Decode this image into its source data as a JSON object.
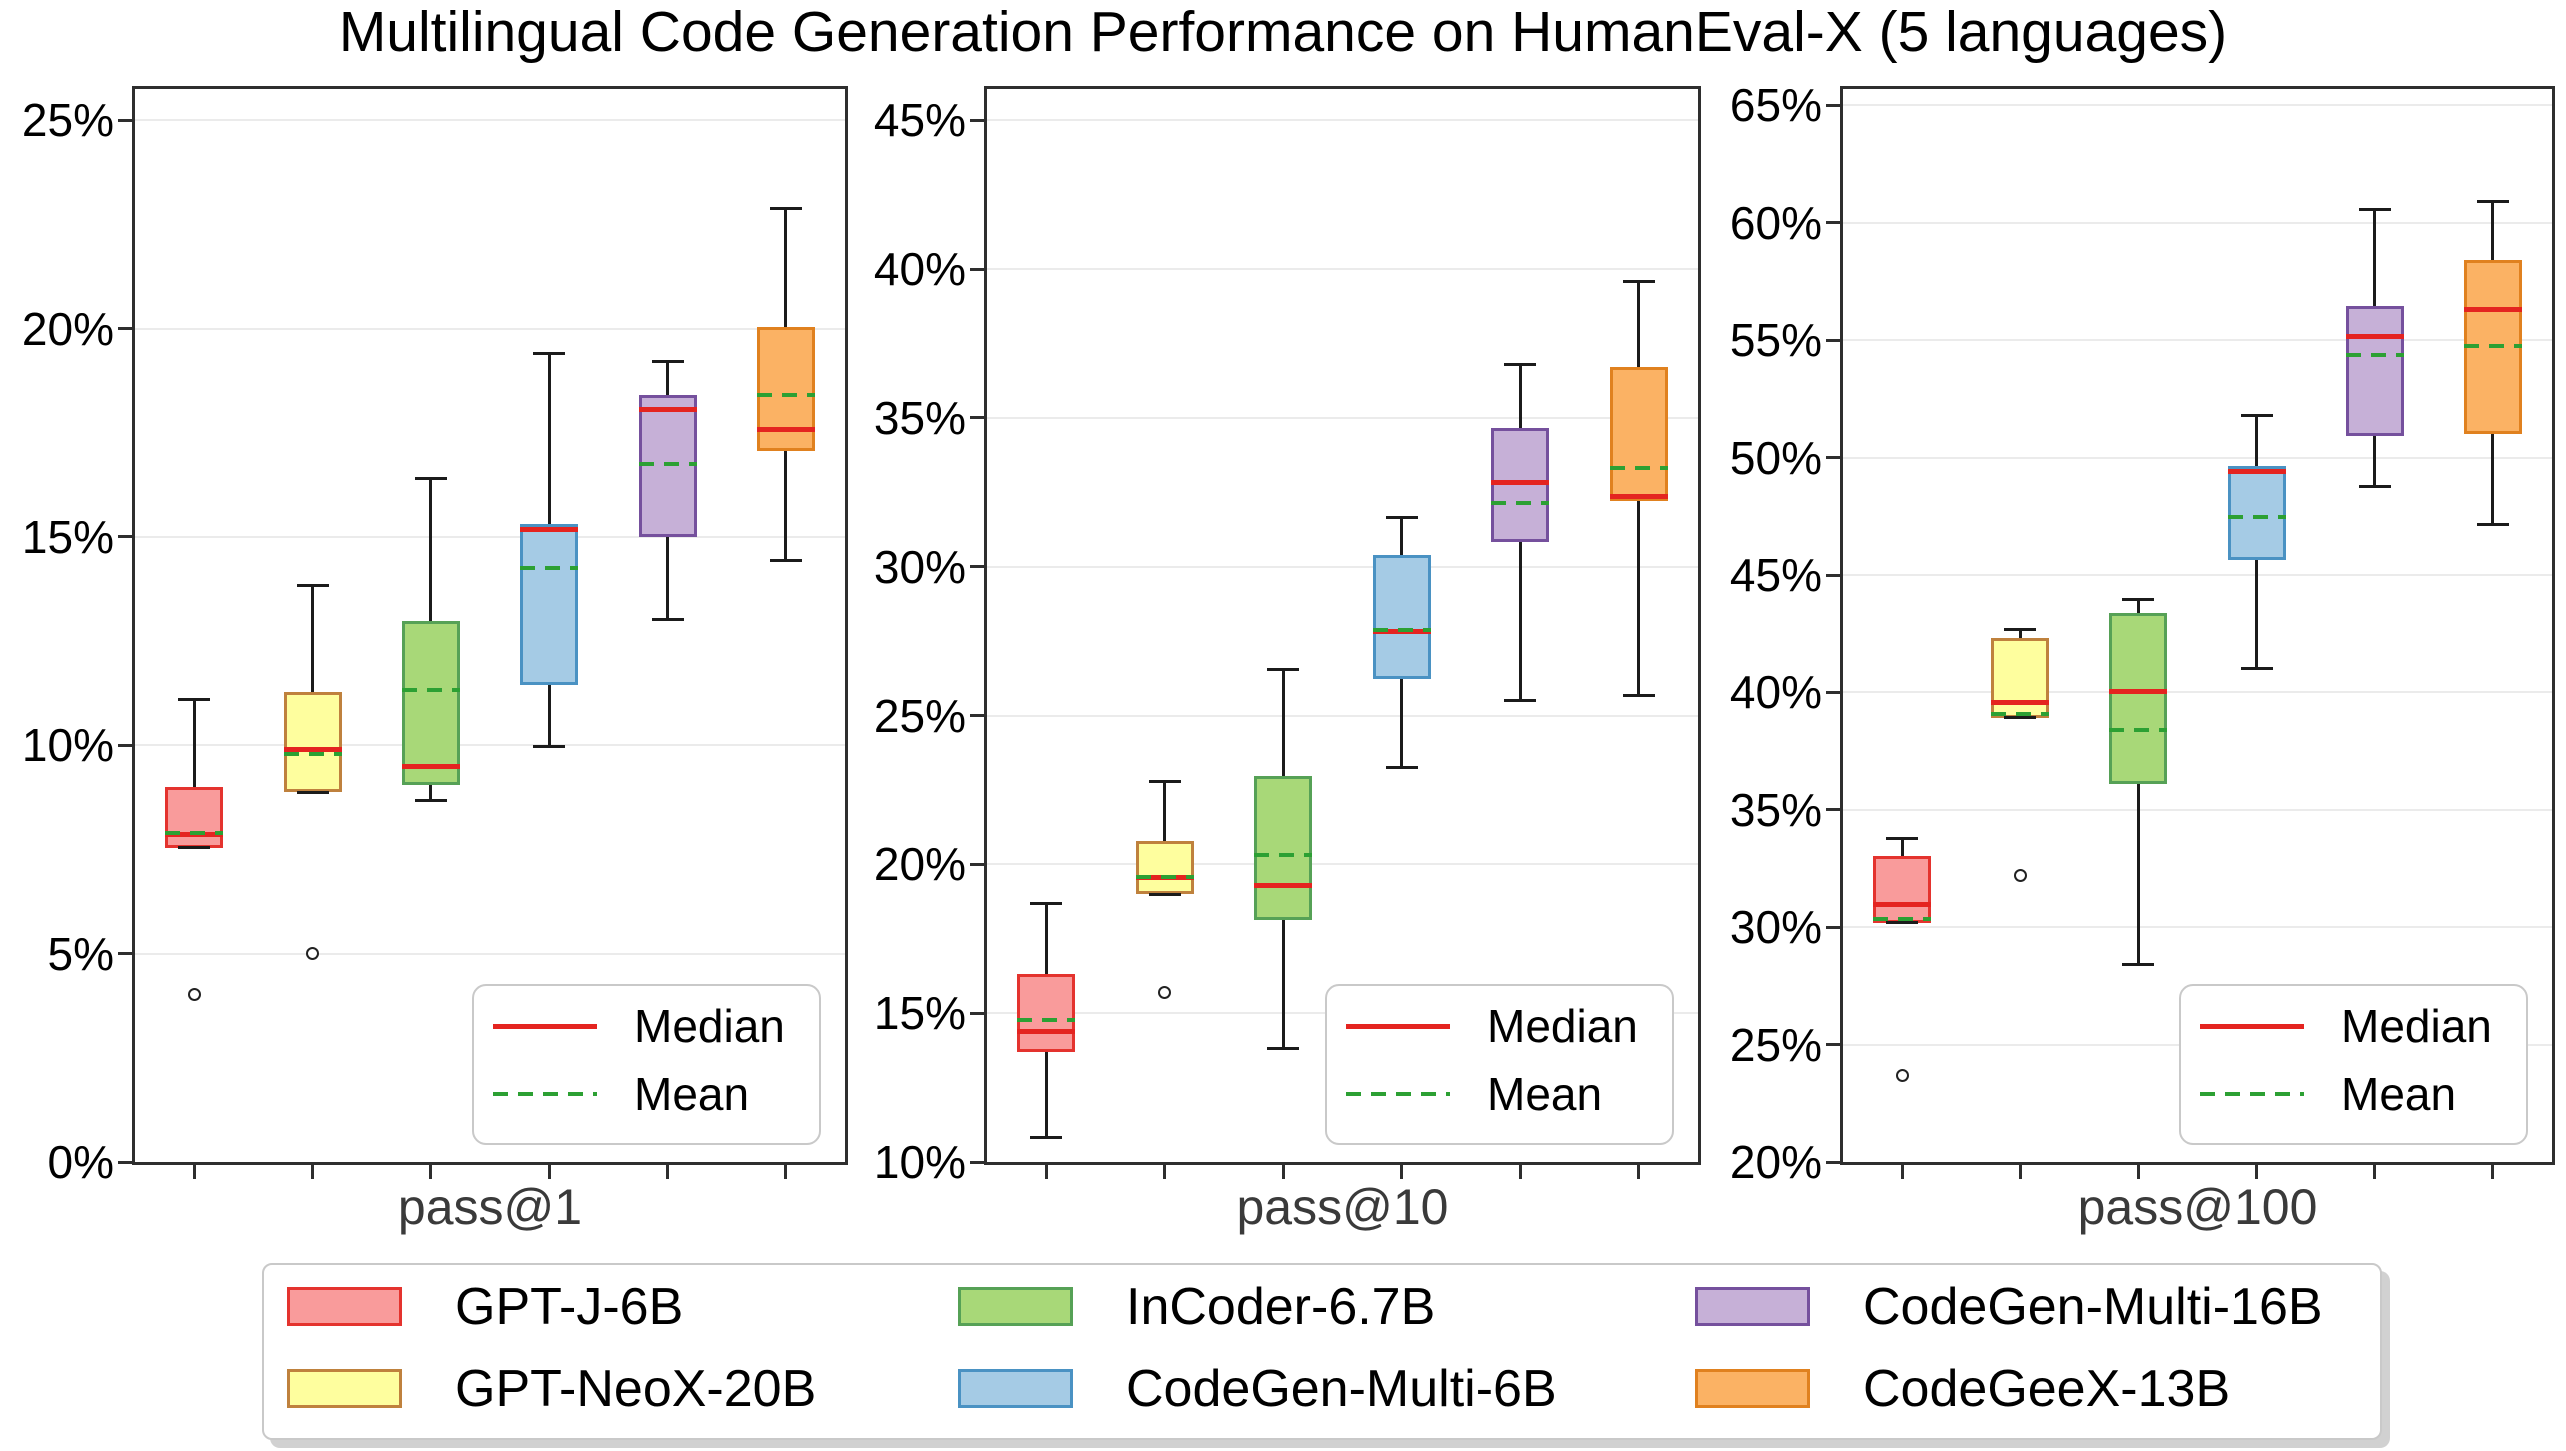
{
  "title": "Multilingual Code Generation Performance on HumanEval-X (5 languages)",
  "inner_legend": {
    "median_label": "Median",
    "mean_label": "Mean"
  },
  "colors": {
    "median": "#e42420",
    "mean": "#2ca033",
    "axis": "#2e2e2e",
    "grid": "#ebebeb",
    "whisker": "#1b1b1b",
    "xlabel_text": "#3a3a3a",
    "tick_text": "#000000",
    "legend_border": "#c9c9c9"
  },
  "models": [
    {
      "name": "GPT-J-6B",
      "fill": "#f99b9b",
      "edge": "#e4332e"
    },
    {
      "name": "GPT-NeoX-20B",
      "fill": "#fefe9e",
      "edge": "#bf813d"
    },
    {
      "name": "InCoder-6.7B",
      "fill": "#a8d878",
      "edge": "#56a156"
    },
    {
      "name": "CodeGen-Multi-6B",
      "fill": "#a5cbe5",
      "edge": "#4a92c3"
    },
    {
      "name": "CodeGen-Multi-16B",
      "fill": "#c6b0d7",
      "edge": "#75509d"
    },
    {
      "name": "CodeGeeX-13B",
      "fill": "#fbb264",
      "edge": "#e0811f"
    }
  ],
  "chart_data": {
    "type": "boxplot",
    "title": "Multilingual Code Generation Performance on HumanEval-X (5 languages)",
    "unit": "%",
    "grid": true,
    "group_labels": [
      "pass@1",
      "pass@10",
      "pass@100"
    ],
    "stat_legend_entries": [
      "Median",
      "Mean"
    ],
    "model_legend_position": "bottom",
    "panels": [
      {
        "xlabel": "pass@1",
        "ylim": [
          0,
          25.75
        ],
        "yticks": [
          0,
          5,
          10,
          15,
          20,
          25
        ],
        "boxes": [
          {
            "model": "GPT-J-6B",
            "whisker_low": 7.54,
            "q1": 7.54,
            "median": 7.86,
            "mean": 7.9,
            "q3": 8.99,
            "whisker_high": 11.1,
            "outliers": [
              4.01
            ]
          },
          {
            "model": "GPT-NeoX-20B",
            "whisker_low": 8.87,
            "q1": 8.87,
            "median": 9.9,
            "mean": 9.78,
            "q3": 11.28,
            "whisker_high": 13.83,
            "outliers": [
              5.0
            ]
          },
          {
            "model": "InCoder-6.7B",
            "whisker_low": 8.68,
            "q1": 9.05,
            "median": 9.5,
            "mean": 11.32,
            "q3": 12.98,
            "whisker_high": 16.41,
            "outliers": []
          },
          {
            "model": "CodeGen-Multi-6B",
            "whisker_low": 9.98,
            "q1": 11.44,
            "median": 15.17,
            "mean": 14.26,
            "q3": 15.3,
            "whisker_high": 19.41,
            "outliers": []
          },
          {
            "model": "CodeGen-Multi-16B",
            "whisker_low": 13.03,
            "q1": 15.0,
            "median": 18.05,
            "mean": 16.74,
            "q3": 18.4,
            "whisker_high": 19.22,
            "outliers": []
          },
          {
            "model": "CodeGeeX-13B",
            "whisker_low": 14.43,
            "q1": 17.06,
            "median": 17.59,
            "mean": 18.4,
            "q3": 20.04,
            "whisker_high": 22.89,
            "outliers": []
          }
        ]
      },
      {
        "xlabel": "pass@10",
        "ylim": [
          10,
          46.05
        ],
        "yticks": [
          10,
          15,
          20,
          25,
          30,
          35,
          40,
          45
        ],
        "boxes": [
          {
            "model": "GPT-J-6B",
            "whisker_low": 10.81,
            "q1": 13.71,
            "median": 14.37,
            "mean": 14.78,
            "q3": 16.32,
            "whisker_high": 18.67,
            "outliers": []
          },
          {
            "model": "GPT-NeoX-20B",
            "whisker_low": 18.99,
            "q1": 18.99,
            "median": 19.55,
            "mean": 19.56,
            "q3": 20.78,
            "whisker_high": 22.78,
            "outliers": [
              15.7
            ]
          },
          {
            "model": "InCoder-6.7B",
            "whisker_low": 13.8,
            "q1": 18.13,
            "median": 19.3,
            "mean": 20.3,
            "q3": 22.98,
            "whisker_high": 26.55,
            "outliers": []
          },
          {
            "model": "CodeGen-Multi-6B",
            "whisker_low": 23.27,
            "q1": 26.23,
            "median": 27.84,
            "mean": 27.87,
            "q3": 30.38,
            "whisker_high": 31.64,
            "outliers": []
          },
          {
            "model": "CodeGen-Multi-16B",
            "whisker_low": 25.49,
            "q1": 30.84,
            "median": 32.83,
            "mean": 32.13,
            "q3": 34.67,
            "whisker_high": 36.81,
            "outliers": []
          },
          {
            "model": "CodeGeeX-13B",
            "whisker_low": 25.68,
            "q1": 32.21,
            "median": 32.37,
            "mean": 33.31,
            "q3": 36.7,
            "whisker_high": 39.57,
            "outliers": []
          }
        ]
      },
      {
        "xlabel": "pass@100",
        "ylim": [
          20,
          65.7
        ],
        "yticks": [
          20,
          25,
          30,
          35,
          40,
          45,
          50,
          55,
          60,
          65
        ],
        "boxes": [
          {
            "model": "GPT-J-6B",
            "whisker_low": 30.18,
            "q1": 30.18,
            "median": 30.96,
            "mean": 30.33,
            "q3": 33.03,
            "whisker_high": 33.78,
            "outliers": [
              23.7
            ]
          },
          {
            "model": "GPT-NeoX-20B",
            "whisker_low": 38.93,
            "q1": 38.93,
            "median": 39.58,
            "mean": 39.1,
            "q3": 42.33,
            "whisker_high": 42.7,
            "outliers": [
              32.2
            ]
          },
          {
            "model": "InCoder-6.7B",
            "whisker_low": 28.41,
            "q1": 36.1,
            "median": 40.06,
            "mean": 38.38,
            "q3": 43.39,
            "whisker_high": 43.96,
            "outliers": []
          },
          {
            "model": "CodeGen-Multi-6B",
            "whisker_low": 41.01,
            "q1": 45.62,
            "median": 49.41,
            "mean": 47.46,
            "q3": 49.63,
            "whisker_high": 51.8,
            "outliers": []
          },
          {
            "model": "CodeGen-Multi-16B",
            "whisker_low": 48.77,
            "q1": 50.91,
            "median": 55.17,
            "mean": 54.39,
            "q3": 56.47,
            "whisker_high": 60.55,
            "outliers": []
          },
          {
            "model": "CodeGeeX-13B",
            "whisker_low": 47.14,
            "q1": 51.02,
            "median": 56.3,
            "mean": 54.76,
            "q3": 58.42,
            "whisker_high": 60.92,
            "outliers": []
          }
        ]
      }
    ]
  }
}
